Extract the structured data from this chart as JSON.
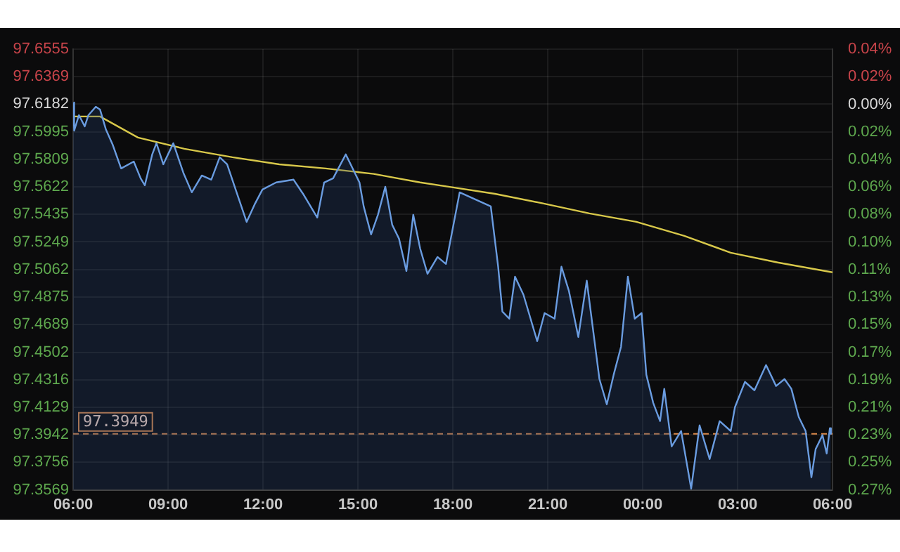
{
  "chart_data": {
    "type": "line",
    "xlim": [
      "--01-01T06:00",
      "--01-02T06:00"
    ],
    "xticks": [
      {
        "value": "--01-01T06:00",
        "label": "06:00"
      },
      {
        "value": "--01-01T09:00",
        "label": "09:00"
      },
      {
        "value": "--01-01T12:00",
        "label": "12:00"
      },
      {
        "value": "--01-01T15:00",
        "label": "15:00"
      },
      {
        "value": "--01-01T18:00",
        "label": "18:00"
      },
      {
        "value": "--01-01T21:00",
        "label": "21:00"
      },
      {
        "value": "--01-02T00:00",
        "label": "00:00"
      },
      {
        "value": "--01-02T03:00",
        "label": "03:00"
      },
      {
        "value": "--01-02T06:00",
        "label": "06:00"
      }
    ],
    "ylim": [
      97.3569,
      97.6555
    ],
    "yticks": [
      97.6555,
      97.6369,
      97.6182,
      97.5995,
      97.5809,
      97.5622,
      97.5435,
      97.5249,
      97.5062,
      97.4875,
      97.4689,
      97.4502,
      97.4316,
      97.4129,
      97.3942,
      97.3756,
      97.3569
    ],
    "y2lim": [
      -0.2674,
      0.0382
    ],
    "y2ticks": [
      {
        "value": 0.0382,
        "label": "0.04%"
      },
      {
        "value": 0.0191,
        "label": "0.02%"
      },
      {
        "value": 0,
        "label": "0.00%"
      },
      {
        "value": -0.0191,
        "label": "0.02%"
      },
      {
        "value": -0.0382,
        "label": "0.04%"
      },
      {
        "value": -0.0573,
        "label": "0.06%"
      },
      {
        "value": -0.0764,
        "label": "0.08%"
      },
      {
        "value": -0.0955,
        "label": "0.10%"
      },
      {
        "value": -0.1146,
        "label": "0.11%"
      },
      {
        "value": -0.1337,
        "label": "0.13%"
      },
      {
        "value": -0.1528,
        "label": "0.15%"
      },
      {
        "value": -0.1719,
        "label": "0.17%"
      },
      {
        "value": -0.191,
        "label": "0.19%"
      },
      {
        "value": -0.2101,
        "label": "0.21%"
      },
      {
        "value": -0.2292,
        "label": "0.23%"
      },
      {
        "value": -0.2483,
        "label": "0.25%"
      },
      {
        "value": -0.2674,
        "label": "0.27%"
      }
    ],
    "grid": true,
    "marker": "none",
    "line_style": "solid",
    "ref_lines": [
      {
        "axis": "y",
        "value": 97.3949,
        "label": "97.3949",
        "color": "#d9884a",
        "line_style": "dashed"
      }
    ],
    "series": [
      {
        "type": "area",
        "color": "#6a9ce0",
        "x": [
          "--01-01T06:00",
          "--01-01T06:02",
          "--01-01T06:11",
          "--01-01T06:22",
          "--01-01T06:29",
          "--01-01T06:43",
          "--01-01T06:51",
          "--01-01T07:02",
          "--01-01T07:15",
          "--01-01T07:31",
          "--01-01T07:55",
          "--01-01T08:08",
          "--01-01T08:16",
          "--01-01T08:30",
          "--01-01T08:38",
          "--01-01T08:51",
          "--01-01T09:10",
          "--01-01T09:29",
          "--01-01T09:45",
          "--01-01T10:04",
          "--01-01T10:22",
          "--01-01T10:38",
          "--01-01T10:52",
          "--01-01T11:10",
          "--01-01T11:29",
          "--01-01T11:45",
          "--01-01T11:59",
          "--01-01T12:25",
          "--01-01T12:58",
          "--01-01T13:16",
          "--01-01T13:43",
          "--01-01T13:56",
          "--01-01T14:13",
          "--01-01T14:37",
          "--01-01T14:50",
          "--01-01T15:03",
          "--01-01T15:11",
          "--01-01T15:25",
          "--01-01T15:38",
          "--01-01T15:52",
          "--01-01T16:05",
          "--01-01T16:18",
          "--01-01T16:32",
          "--01-01T16:45",
          "--01-01T16:58",
          "--01-01T17:12",
          "--01-01T17:31",
          "--01-01T17:47",
          "--01-01T18:13",
          "--01-01T19:12",
          "--01-01T19:26",
          "--01-01T19:34",
          "--01-01T19:47",
          "--01-01T19:58",
          "--01-01T20:14",
          "--01-01T20:40",
          "--01-01T20:54",
          "--01-01T21:13",
          "--01-01T21:26",
          "--01-01T21:40",
          "--01-01T21:58",
          "--01-01T22:14",
          "--01-01T22:38",
          "--01-01T22:52",
          "--01-01T23:05",
          "--01-01T23:19",
          "--01-01T23:32",
          "--01-01T23:45",
          "--01-01T23:58",
          "--01-02T00:07",
          "--01-02T00:20",
          "--01-02T00:33",
          "--01-02T00:41",
          "--01-02T00:55",
          "--01-02T01:13",
          "--01-02T01:32",
          "--01-02T01:48",
          "--01-02T02:07",
          "--01-02T02:26",
          "--01-02T02:47",
          "--01-02T02:55",
          "--01-02T03:14",
          "--01-02T03:32",
          "--01-02T03:54",
          "--01-02T04:13",
          "--01-02T04:29",
          "--01-02T04:42",
          "--01-02T04:56",
          "--01-02T05:09",
          "--01-02T05:20",
          "--01-02T05:28",
          "--01-02T05:41",
          "--01-02T05:49",
          "--01-02T05:55",
          "--01-02T05:57"
        ],
        "values": [
          97.6194,
          97.6003,
          97.6108,
          97.6032,
          97.6108,
          97.6165,
          97.6146,
          97.6013,
          97.5908,
          97.5747,
          97.5794,
          97.568,
          97.5633,
          97.5842,
          97.5918,
          97.5775,
          97.5918,
          97.5718,
          97.5585,
          97.5699,
          97.5671,
          97.5823,
          97.5775,
          97.5585,
          97.5385,
          97.5509,
          97.5604,
          97.5652,
          97.5671,
          97.5575,
          97.5414,
          97.5652,
          97.568,
          97.5842,
          97.5747,
          97.5652,
          97.549,
          97.53,
          97.5433,
          97.5623,
          97.5366,
          97.5271,
          97.5052,
          97.5433,
          97.5205,
          97.5033,
          97.5147,
          97.51,
          97.5585,
          97.549,
          97.5081,
          97.4777,
          97.4729,
          97.5014,
          97.4891,
          97.4577,
          97.4767,
          97.4729,
          97.5081,
          97.4919,
          97.4605,
          97.4986,
          97.432,
          97.4149,
          97.4349,
          97.4539,
          97.5014,
          97.4729,
          97.4767,
          97.4349,
          97.4159,
          97.4035,
          97.4254,
          97.3864,
          97.3968,
          97.3578,
          97.4006,
          97.3778,
          97.4035,
          97.3968,
          97.413,
          97.4301,
          97.4244,
          97.4415,
          97.4273,
          97.432,
          97.4254,
          97.4063,
          97.3968,
          97.3655,
          97.3845,
          97.394,
          97.3816,
          97.3987,
          97.3949
        ]
      },
      {
        "type": "line",
        "color": "#d8c84a",
        "x": [
          "--01-01T06:00",
          "--01-01T06:51",
          "--01-01T08:03",
          "--01-01T09:31",
          "--01-01T11:02",
          "--01-01T12:31",
          "--01-01T13:59",
          "--01-01T15:30",
          "--01-01T16:58",
          "--01-01T17:52",
          "--01-01T19:20",
          "--01-01T20:51",
          "--01-01T22:19",
          "--01-01T23:48",
          "--01-02T01:19",
          "--01-02T02:47",
          "--01-02T04:16",
          "--01-02T06:00"
        ],
        "values": [
          97.6099,
          97.6099,
          97.5956,
          97.588,
          97.5823,
          97.5775,
          97.5747,
          97.571,
          97.5652,
          97.5623,
          97.5575,
          97.551,
          97.5442,
          97.5385,
          97.529,
          97.5176,
          97.511,
          97.5043
        ]
      }
    ]
  }
}
